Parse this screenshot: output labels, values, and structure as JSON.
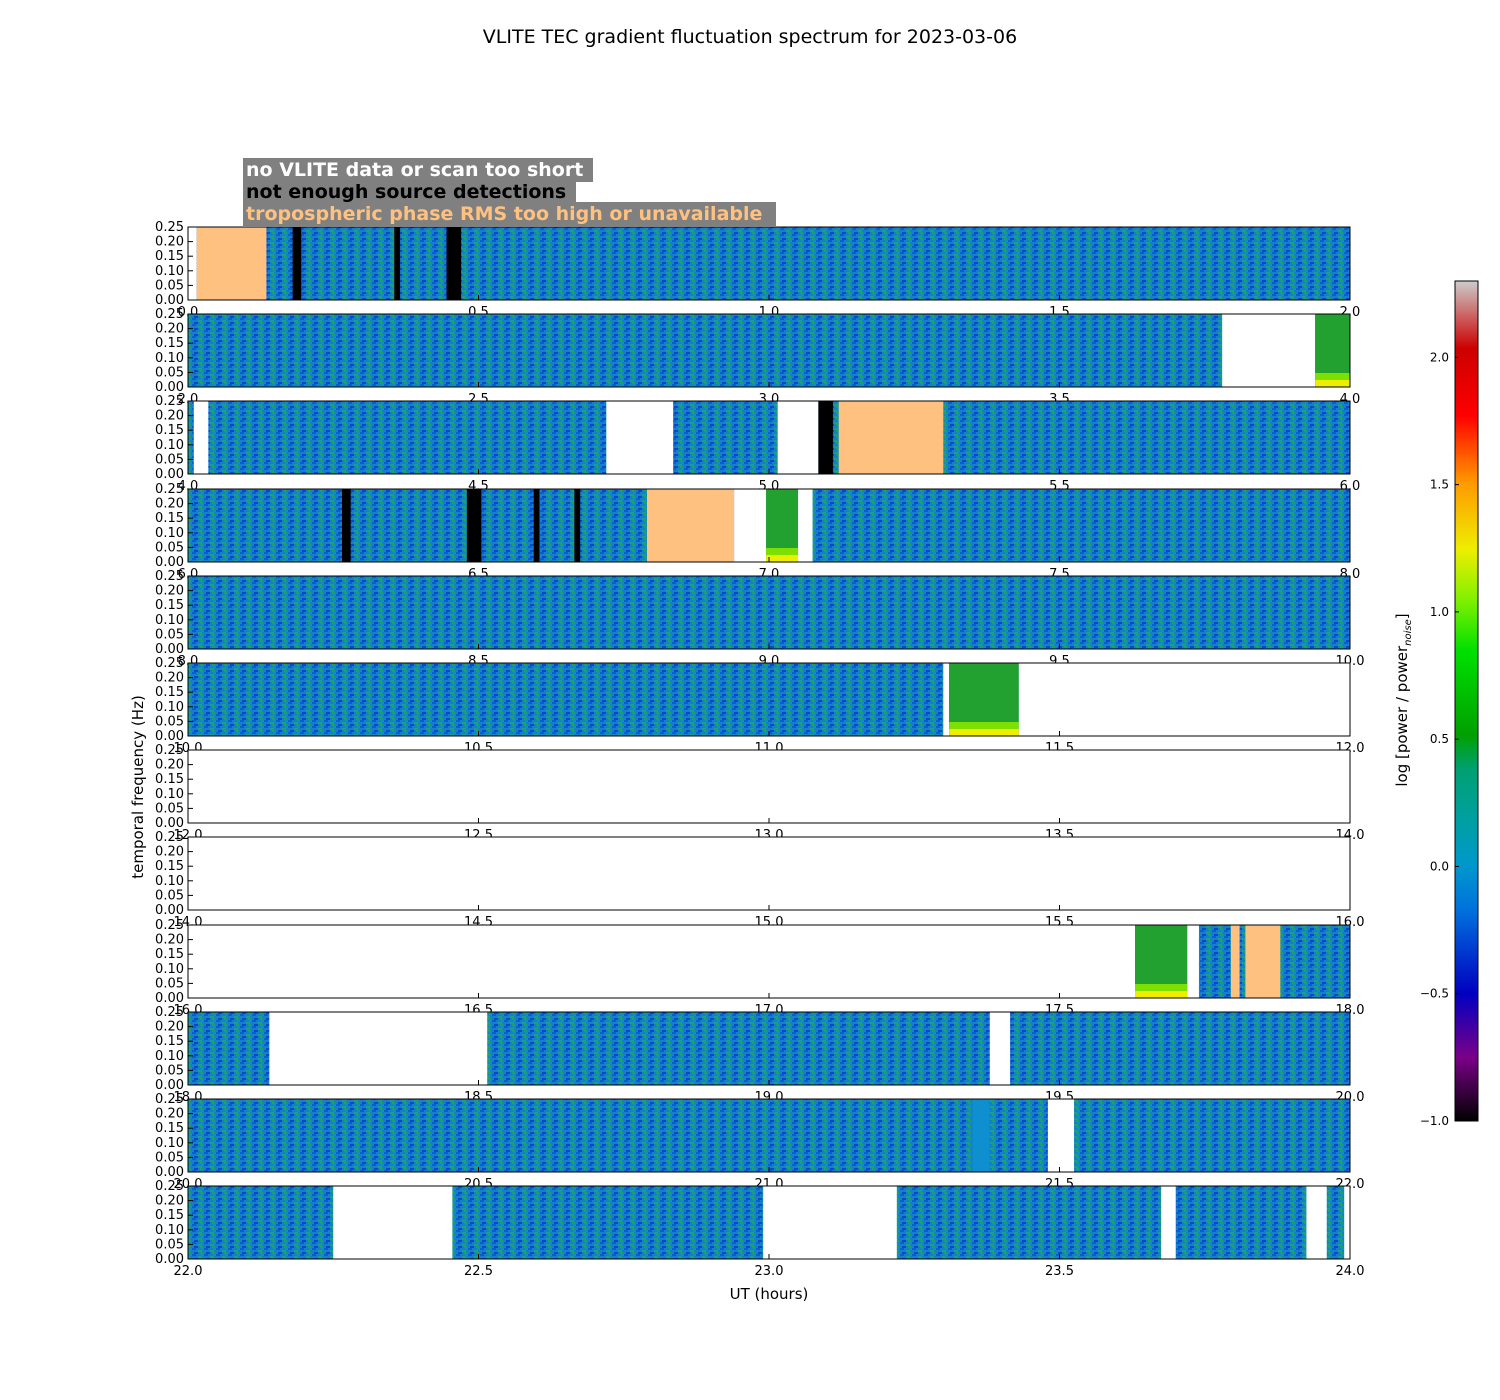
{
  "chart_data": {
    "type": "heatmap",
    "title": "VLITE TEC gradient fluctuation spectrum for 2023-03-06",
    "xlabel": "UT (hours)",
    "ylabel": "temporal frequency (Hz)",
    "ylim": [
      0,
      0.25
    ],
    "yticks": [
      "0.00",
      "0.05",
      "0.10",
      "0.15",
      "0.20",
      "0.25"
    ],
    "colorbar": {
      "label": "log [power / power",
      "label_sub": "noise",
      "label_end": "]",
      "range": [
        -1.0,
        2.3
      ],
      "ticks": [
        "−1.0",
        "−0.5",
        "0.0",
        "0.5",
        "1.0",
        "1.5",
        "2.0"
      ]
    },
    "legend": [
      {
        "text": "no VLITE data or scan too short",
        "color": "#ffffff"
      },
      {
        "text": "not enough source detections",
        "color": "#000000"
      },
      {
        "text": "tropospheric phase RMS too high or unavailable",
        "color": "#ffc17f"
      }
    ],
    "rows": [
      {
        "start": 0,
        "end": 2,
        "ticks": [
          "0.0",
          "0.5",
          "1.0",
          "1.5",
          "2.0"
        ],
        "segments": [
          {
            "type": "nodata",
            "from": 0.0,
            "to": 0.015
          },
          {
            "type": "tropo",
            "from": 0.015,
            "to": 0.135
          },
          {
            "type": "nodet",
            "from": 0.18,
            "to": 0.195
          },
          {
            "type": "nodet",
            "from": 0.355,
            "to": 0.365
          },
          {
            "type": "nodet",
            "from": 0.445,
            "to": 0.47
          }
        ]
      },
      {
        "start": 2,
        "end": 4,
        "ticks": [
          "2.0",
          "2.5",
          "3.0",
          "3.5",
          "4.0"
        ],
        "segments": [
          {
            "type": "nodata",
            "from": 3.78,
            "to": 3.94
          },
          {
            "type": "hot",
            "from": 3.94,
            "to": 4.0
          }
        ]
      },
      {
        "start": 4,
        "end": 6,
        "ticks": [
          "4.0",
          "4.5",
          "5.0",
          "5.5",
          "6.0"
        ],
        "segments": [
          {
            "type": "nodata",
            "from": 4.01,
            "to": 4.035
          },
          {
            "type": "nodata",
            "from": 4.72,
            "to": 4.835
          },
          {
            "type": "nodata",
            "from": 5.015,
            "to": 5.085
          },
          {
            "type": "nodet",
            "from": 5.085,
            "to": 5.11
          },
          {
            "type": "tropo",
            "from": 5.12,
            "to": 5.3
          }
        ]
      },
      {
        "start": 6,
        "end": 8,
        "ticks": [
          "6.0",
          "6.5",
          "7.0",
          "7.5",
          "8.0"
        ],
        "segments": [
          {
            "type": "nodet",
            "from": 6.265,
            "to": 6.28
          },
          {
            "type": "nodet",
            "from": 6.48,
            "to": 6.505
          },
          {
            "type": "nodet",
            "from": 6.595,
            "to": 6.605
          },
          {
            "type": "nodet",
            "from": 6.665,
            "to": 6.675
          },
          {
            "type": "tropo",
            "from": 6.79,
            "to": 6.94
          },
          {
            "type": "nodata",
            "from": 6.94,
            "to": 6.995
          },
          {
            "type": "hot",
            "from": 6.995,
            "to": 7.05
          },
          {
            "type": "nodata",
            "from": 7.05,
            "to": 7.075
          }
        ]
      },
      {
        "start": 8,
        "end": 10,
        "ticks": [
          "8.0",
          "8.5",
          "9.0",
          "9.5",
          "10.0"
        ],
        "segments": []
      },
      {
        "start": 10,
        "end": 12,
        "ticks": [
          "10.0",
          "10.5",
          "11.0",
          "11.5",
          "12.0"
        ],
        "segments": [
          {
            "type": "nodata",
            "from": 11.3,
            "to": 11.31
          },
          {
            "type": "hot",
            "from": 11.31,
            "to": 11.43
          },
          {
            "type": "nodata",
            "from": 11.43,
            "to": 12.0
          }
        ]
      },
      {
        "start": 12,
        "end": 14,
        "ticks": [
          "12.0",
          "12.5",
          "13.0",
          "13.5",
          "14.0"
        ],
        "segments": [
          {
            "type": "nodata",
            "from": 12.0,
            "to": 14.0
          }
        ]
      },
      {
        "start": 14,
        "end": 16,
        "ticks": [
          "14.0",
          "14.5",
          "15.0",
          "15.5",
          "16.0"
        ],
        "segments": [
          {
            "type": "nodata",
            "from": 14.0,
            "to": 16.0
          }
        ]
      },
      {
        "start": 16,
        "end": 18,
        "ticks": [
          "16.0",
          "16.5",
          "17.0",
          "17.5",
          "18.0"
        ],
        "segments": [
          {
            "type": "nodata",
            "from": 16.0,
            "to": 17.63
          },
          {
            "type": "hot",
            "from": 17.63,
            "to": 17.72
          },
          {
            "type": "nodata",
            "from": 17.72,
            "to": 17.74
          },
          {
            "type": "tropo",
            "from": 17.795,
            "to": 17.81
          },
          {
            "type": "tropo",
            "from": 17.82,
            "to": 17.88
          }
        ]
      },
      {
        "start": 18,
        "end": 20,
        "ticks": [
          "18.0",
          "18.5",
          "19.0",
          "19.5",
          "20.0"
        ],
        "segments": [
          {
            "type": "nodata",
            "from": 18.14,
            "to": 18.515
          },
          {
            "type": "nodata",
            "from": 19.38,
            "to": 19.415
          }
        ]
      },
      {
        "start": 20,
        "end": 22,
        "ticks": [
          "20.0",
          "20.5",
          "21.0",
          "21.5",
          "22.0"
        ],
        "segments": [
          {
            "type": "flat",
            "from": 21.35,
            "to": 21.38
          },
          {
            "type": "nodata",
            "from": 21.48,
            "to": 21.525
          }
        ]
      },
      {
        "start": 22,
        "end": 24,
        "ticks": [
          "22.0",
          "22.5",
          "23.0",
          "23.5",
          "24.0"
        ],
        "segments": [
          {
            "type": "nodata",
            "from": 22.25,
            "to": 22.455
          },
          {
            "type": "nodata",
            "from": 22.99,
            "to": 23.22
          },
          {
            "type": "nodata",
            "from": 23.675,
            "to": 23.7
          },
          {
            "type": "nodata",
            "from": 23.925,
            "to": 23.96
          },
          {
            "type": "nodata",
            "from": 23.99,
            "to": 24.0
          }
        ]
      }
    ]
  }
}
